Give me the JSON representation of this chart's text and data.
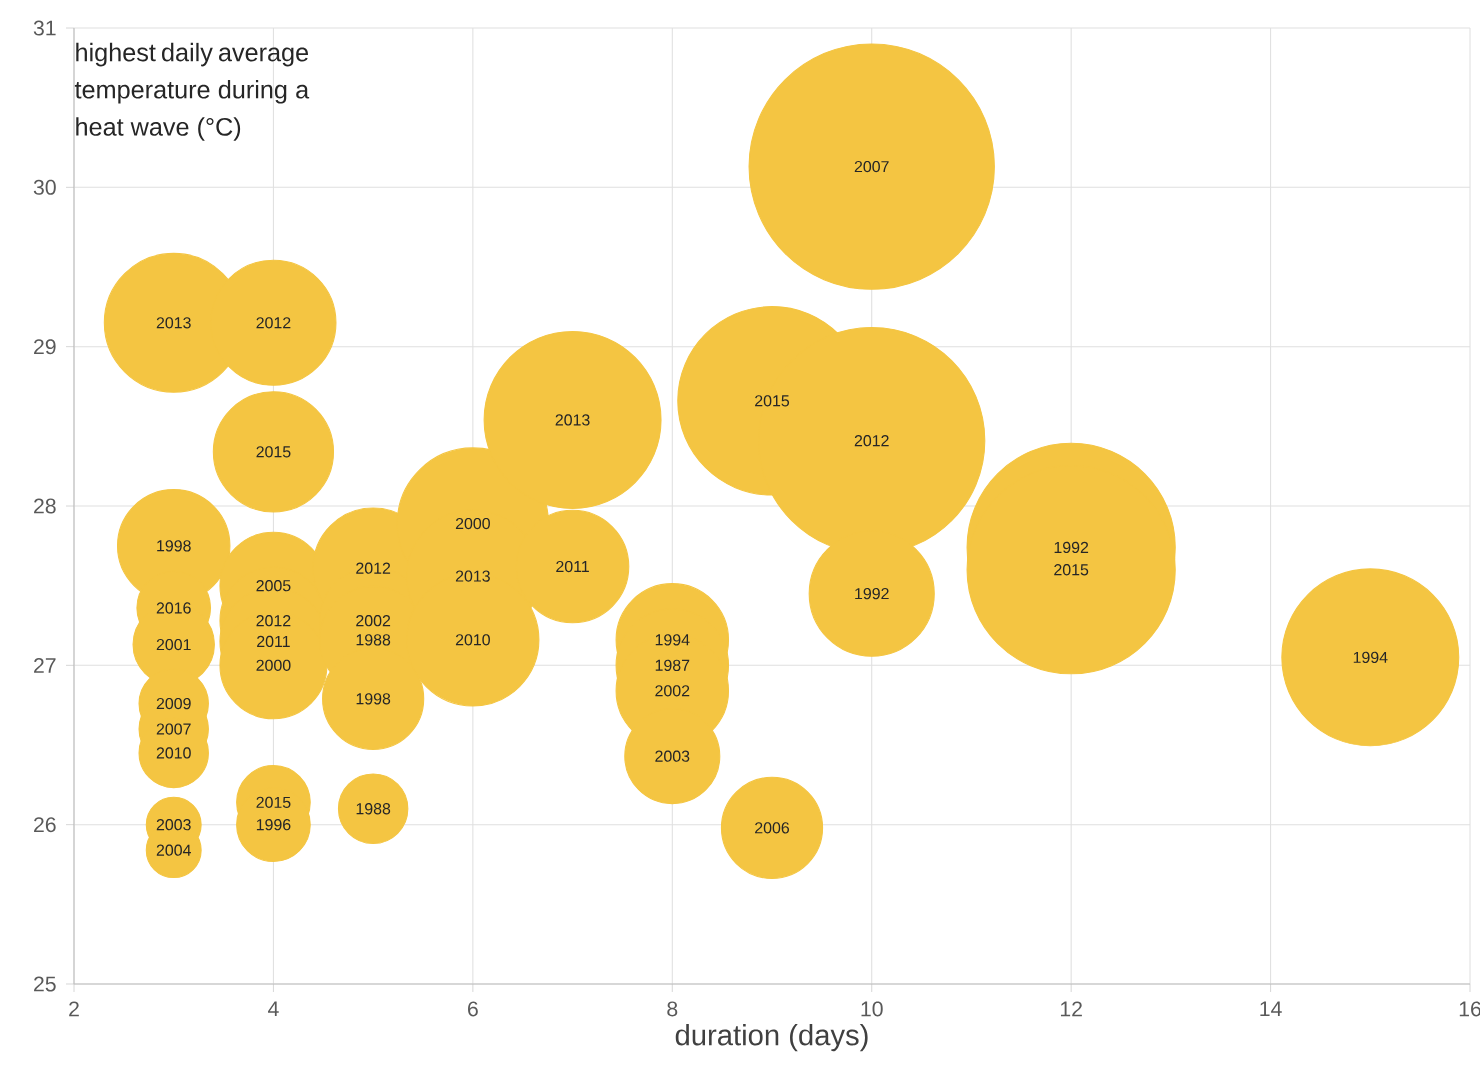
{
  "chart_data": {
    "type": "bubble",
    "xlabel": "duration (days)",
    "ylabel": "highest daily average temperature during a heat wave (°C)",
    "xlim": [
      2,
      16
    ],
    "xticks": [
      2,
      4,
      6,
      8,
      10,
      12,
      14,
      16
    ],
    "ylim": [
      25,
      31
    ],
    "yticks": [
      25,
      26,
      27,
      28,
      29,
      30,
      31
    ],
    "grid": true,
    "color": "#f4c542",
    "x": [
      10,
      3,
      4,
      4,
      3,
      3,
      3,
      3,
      3,
      3,
      3,
      3,
      4,
      4,
      4,
      4,
      4,
      4,
      5,
      5,
      5,
      5,
      5,
      6,
      6,
      6,
      7,
      7,
      8,
      8,
      8,
      8,
      9,
      9,
      10,
      10,
      12,
      12,
      15
    ],
    "values": [
      30.13,
      29.15,
      29.15,
      28.34,
      27.75,
      27.36,
      27.13,
      26.76,
      26.6,
      26.45,
      26.0,
      25.84,
      27.5,
      27.28,
      27.15,
      27.0,
      26.14,
      26.0,
      27.61,
      27.28,
      27.16,
      26.79,
      26.1,
      27.89,
      27.56,
      27.16,
      28.54,
      27.62,
      27.16,
      27.0,
      26.84,
      26.43,
      28.66,
      25.98,
      28.41,
      27.45,
      27.74,
      27.6,
      27.05
    ],
    "sizes": [
      1,
      0.32,
      0.26,
      0.24,
      0.21,
      0.09,
      0.11,
      0.08,
      0.08,
      0.08,
      0.05,
      0.05,
      0.19,
      0.19,
      0.19,
      0.19,
      0.09,
      0.09,
      0.24,
      0.19,
      0.19,
      0.17,
      0.08,
      0.38,
      0.29,
      0.29,
      0.52,
      0.21,
      0.21,
      0.21,
      0.21,
      0.15,
      0.59,
      0.17,
      0.85,
      0.26,
      0.72,
      0.72,
      0.52
    ],
    "annotations": [
      {
        "text": "2007",
        "x": 10,
        "y": 30.13
      },
      {
        "text": "2013",
        "x": 3,
        "y": 29.15
      },
      {
        "text": "2012",
        "x": 4,
        "y": 29.15
      },
      {
        "text": "2015",
        "x": 4,
        "y": 28.34
      },
      {
        "text": "1998",
        "x": 3,
        "y": 27.75
      },
      {
        "text": "2016",
        "x": 3,
        "y": 27.36
      },
      {
        "text": "2001",
        "x": 3,
        "y": 27.13
      },
      {
        "text": "2009",
        "x": 3,
        "y": 26.76
      },
      {
        "text": "2007",
        "x": 3,
        "y": 26.6
      },
      {
        "text": "2010",
        "x": 3,
        "y": 26.45
      },
      {
        "text": "2003",
        "x": 3,
        "y": 26.0
      },
      {
        "text": "2004",
        "x": 3,
        "y": 25.84
      },
      {
        "text": "2005",
        "x": 4,
        "y": 27.5
      },
      {
        "text": "2012",
        "x": 4,
        "y": 27.28
      },
      {
        "text": "2011",
        "x": 4,
        "y": 27.15
      },
      {
        "text": "2000",
        "x": 4,
        "y": 27.0
      },
      {
        "text": "2015",
        "x": 4,
        "y": 26.14
      },
      {
        "text": "1996",
        "x": 4,
        "y": 26.0
      },
      {
        "text": "2012",
        "x": 5,
        "y": 27.61
      },
      {
        "text": "2002",
        "x": 5,
        "y": 27.28
      },
      {
        "text": "1988",
        "x": 5,
        "y": 27.16
      },
      {
        "text": "1998",
        "x": 5,
        "y": 26.79
      },
      {
        "text": "1988",
        "x": 5,
        "y": 26.1
      },
      {
        "text": "2000",
        "x": 6,
        "y": 27.89
      },
      {
        "text": "2013",
        "x": 6,
        "y": 27.56
      },
      {
        "text": "2010",
        "x": 6,
        "y": 27.16
      },
      {
        "text": "2013",
        "x": 7,
        "y": 28.54
      },
      {
        "text": "2011",
        "x": 7,
        "y": 27.62
      },
      {
        "text": "1994",
        "x": 8,
        "y": 27.16
      },
      {
        "text": "1987",
        "x": 8,
        "y": 27.0
      },
      {
        "text": "2002",
        "x": 8,
        "y": 26.84
      },
      {
        "text": "2003",
        "x": 8,
        "y": 26.43
      },
      {
        "text": "2015",
        "x": 9,
        "y": 28.66
      },
      {
        "text": "2006",
        "x": 9,
        "y": 25.98
      },
      {
        "text": "2012",
        "x": 10,
        "y": 28.41
      },
      {
        "text": "1992",
        "x": 10,
        "y": 27.45
      },
      {
        "text": "1992",
        "x": 12,
        "y": 27.74
      },
      {
        "text": "2015",
        "x": 12,
        "y": 27.6
      },
      {
        "text": "1994",
        "x": 15,
        "y": 27.05
      }
    ]
  }
}
